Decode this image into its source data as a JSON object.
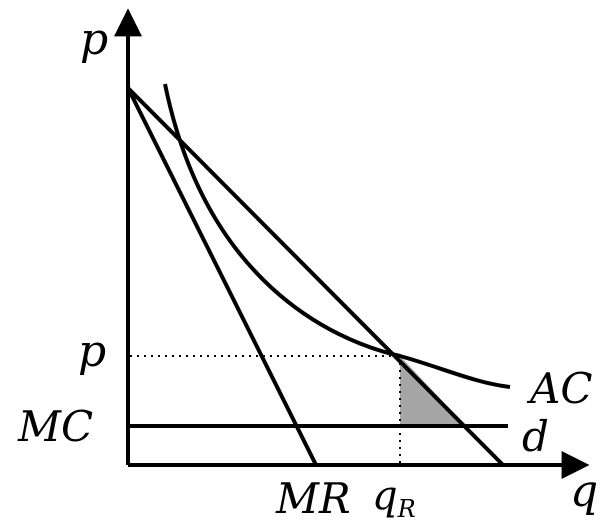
{
  "axes": {
    "y_label": "p",
    "x_label": "q"
  },
  "price_mark": "p",
  "mc_mark": "MC",
  "curves": {
    "ac": "AC",
    "demand": "d",
    "mr": "MR"
  },
  "quantity_mark": {
    "base": "q",
    "subscript": "R"
  },
  "colors": {
    "ink": "#000000",
    "shaded_region": "#a6a6a6"
  }
}
